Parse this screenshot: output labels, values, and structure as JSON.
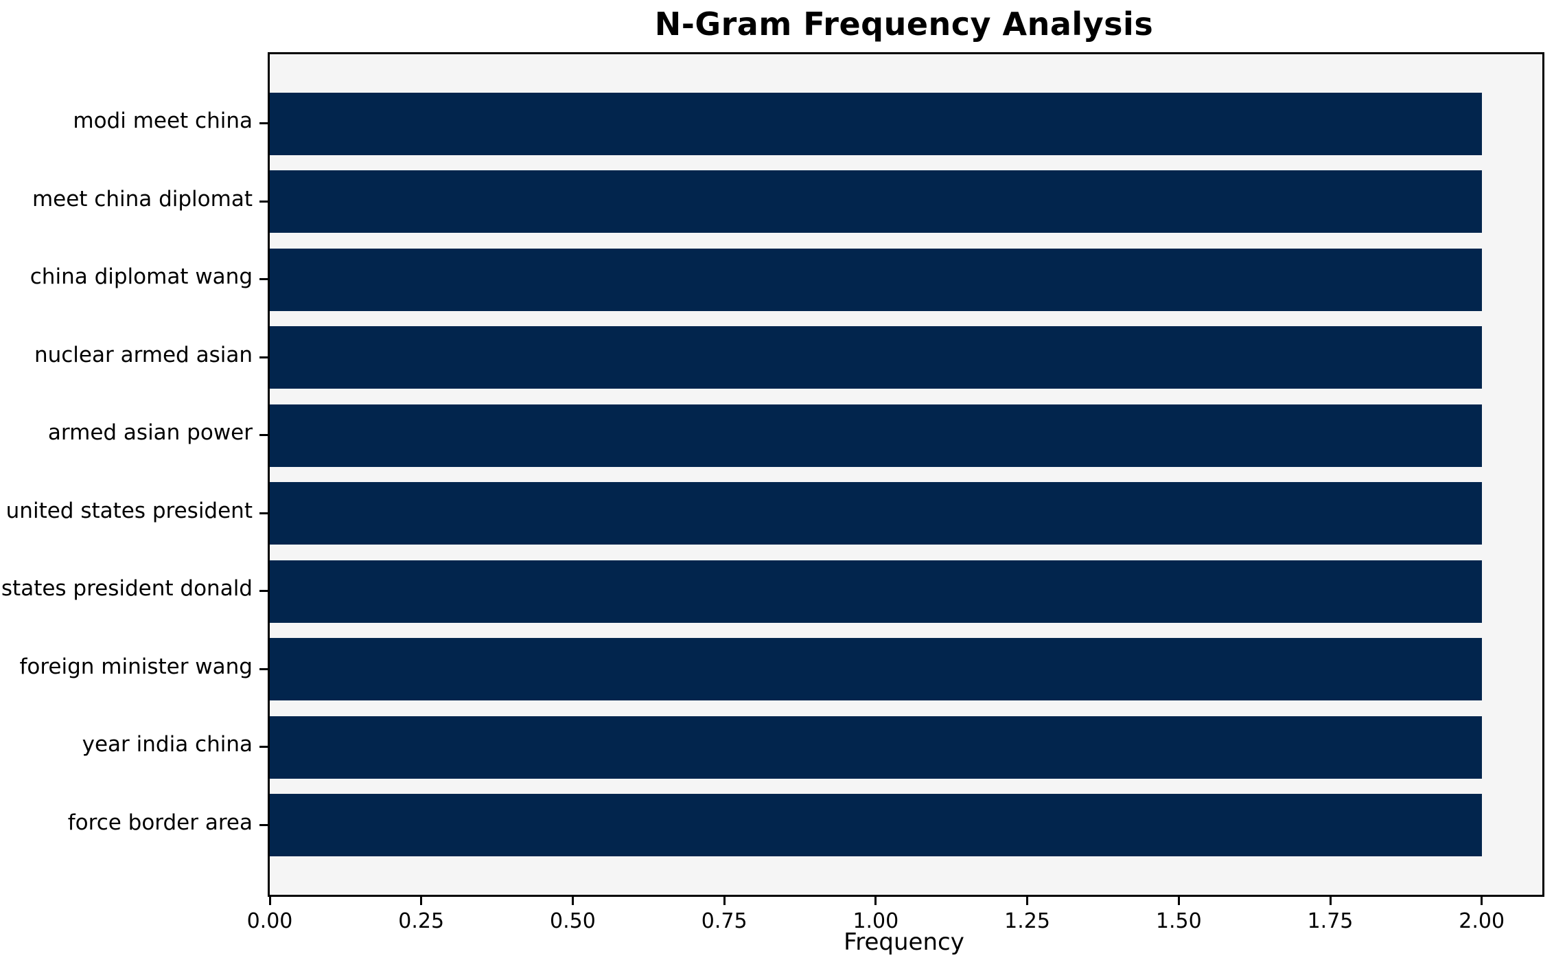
{
  "chart_data": {
    "type": "bar",
    "orientation": "horizontal",
    "title": "N-Gram Frequency Analysis",
    "xlabel": "Frequency",
    "ylabel": "",
    "categories": [
      "modi meet china",
      "meet china diplomat",
      "china diplomat wang",
      "nuclear armed asian",
      "armed asian power",
      "united states president",
      "states president donald",
      "foreign minister wang",
      "year india china",
      "force border area"
    ],
    "values": [
      2.0,
      2.0,
      2.0,
      2.0,
      2.0,
      2.0,
      2.0,
      2.0,
      2.0,
      2.0
    ],
    "xlim": [
      0,
      2.1
    ],
    "xticks": [
      0.0,
      0.25,
      0.5,
      0.75,
      1.0,
      1.25,
      1.5,
      1.75,
      2.0
    ],
    "xtick_labels": [
      "0.00",
      "0.25",
      "0.50",
      "0.75",
      "1.00",
      "1.25",
      "1.50",
      "1.75",
      "2.00"
    ],
    "grid": false,
    "legend": "none",
    "bar_color": "#02254d",
    "plot_background": "#f5f5f5",
    "figure_background": "#ffffff",
    "spine_color": "#000000",
    "text_color": "#000000"
  }
}
